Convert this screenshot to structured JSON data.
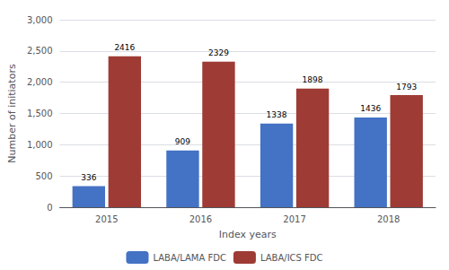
{
  "chart_data": {
    "type": "bar",
    "xlabel": "Index years",
    "ylabel": "Number of initiators",
    "categories": [
      "2015",
      "2016",
      "2017",
      "2018"
    ],
    "series": [
      {
        "name": "LABA/LAMA FDC",
        "color": "#4472C4",
        "values": [
          336,
          909,
          1338,
          1436
        ]
      },
      {
        "name": "LABA/ICS FDC",
        "color": "#9E3B35",
        "values": [
          2416,
          2329,
          1898,
          1793
        ]
      }
    ],
    "ylim": [
      0,
      3000
    ],
    "yticks": [
      0,
      500,
      1000,
      1500,
      2000,
      2500,
      3000
    ],
    "grid": true,
    "legend": "bottom",
    "data_labels": true
  }
}
